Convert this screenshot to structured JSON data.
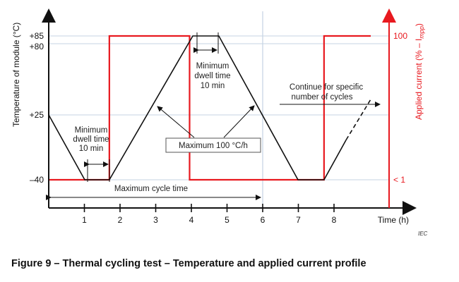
{
  "figure": {
    "caption": "Figure 9 – Thermal cycling test – Temperature and applied current profile",
    "watermark": "IEC"
  },
  "chart_data": {
    "type": "line",
    "xlabel": "Time   (h)",
    "ylabel_left": "Temperature of module   (°C)",
    "ylabel_right": "Applied current   (% – I",
    "ylabel_right_sub": "mpp",
    "ylabel_right_close": ")",
    "x_ticks": [
      "1",
      "2",
      "3",
      "4",
      "5",
      "6",
      "7",
      "8"
    ],
    "y_left_ticks": [
      {
        "value": 85,
        "label": "+85"
      },
      {
        "value": 80,
        "label": "+80"
      },
      {
        "value": 25,
        "label": "+25"
      },
      {
        "value": -40,
        "label": "–40"
      }
    ],
    "y_right_ticks": [
      {
        "value": "high",
        "label": "100"
      },
      {
        "value": "low",
        "label": "< 1"
      }
    ],
    "series": [
      {
        "name": "temperature",
        "color": "#111111",
        "points": [
          [
            0,
            25
          ],
          [
            1.01,
            -40
          ],
          [
            1.7,
            -40
          ],
          [
            4.04,
            85
          ],
          [
            4.77,
            85
          ],
          [
            6.99,
            -40
          ],
          [
            7.72,
            -40
          ],
          [
            8.34,
            0
          ]
        ],
        "dashed_continuation": [
          [
            8.34,
            0
          ],
          [
            9.03,
            37
          ]
        ]
      },
      {
        "name": "applied current",
        "color": "#e8191f",
        "steps": [
          [
            0,
            "low"
          ],
          [
            1.7,
            "high"
          ],
          [
            3.95,
            "low"
          ],
          [
            7.72,
            "high"
          ],
          [
            9.03,
            "high"
          ]
        ]
      }
    ],
    "reference_line_x": 6,
    "annotations": {
      "dwell_low": [
        "Minimum",
        "dwell time",
        "10 min"
      ],
      "dwell_high": [
        "Minimum",
        "dwell time",
        "10 min"
      ],
      "ramp": "Maximum 100 °C/h",
      "cycle": "Maximum cycle time",
      "continue": [
        "Continue for specific",
        "number of cycles"
      ]
    },
    "colors": {
      "grid": "#c5d3e3",
      "current": "#e8191f",
      "axis": "#111111"
    }
  }
}
